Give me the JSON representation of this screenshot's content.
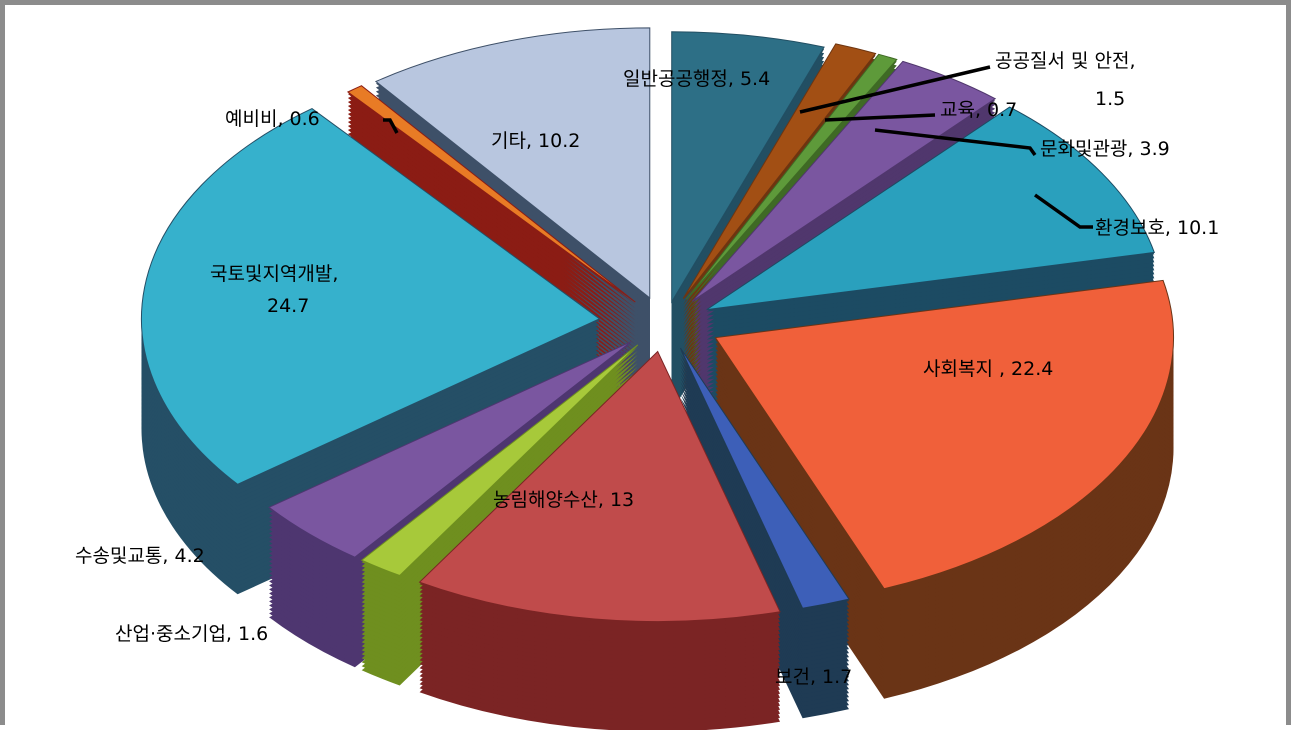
{
  "chart_data": {
    "type": "pie",
    "title": "",
    "categories": [
      "일반공공행정",
      "공공질서 및 안전",
      "교육",
      "문화및관광",
      "환경보호",
      "사회복지",
      "보건",
      "농림해양수산",
      "산업·중소기업",
      "수송및교통",
      "국토및지역개발",
      "예비비",
      "기타"
    ],
    "values": [
      5.4,
      1.5,
      0.7,
      3.9,
      10.1,
      22.4,
      1.7,
      13,
      1.6,
      4.2,
      24.7,
      0.6,
      10.2
    ],
    "colors": [
      "#2d6f86",
      "#a24f14",
      "#5e9a3a",
      "#7a56a0",
      "#2aa0bd",
      "#f0603a",
      "#3d5fb8",
      "#c04b4b",
      "#a7c93a",
      "#7a56a0",
      "#36b1cc",
      "#e87b25",
      "#b8c6df"
    ],
    "side_colors": [
      "#224f63",
      "#6e3510",
      "#3f6a25",
      "#50376d",
      "#1c4b63",
      "#6a3416",
      "#1f3b54",
      "#7b2424",
      "#6f8f1f",
      "#4e3670",
      "#254f66",
      "#8b1c14",
      "#3e5068"
    ],
    "labels": [
      {
        "line1": "일반공공행정, 5.4",
        "line2": ""
      },
      {
        "line1": "공공질서 및 안전,",
        "line2": "1.5"
      },
      {
        "line1": "교육, 0.7",
        "line2": ""
      },
      {
        "line1": "문화및관광, 3.9",
        "line2": ""
      },
      {
        "line1": "환경보호,  10.1",
        "line2": ""
      },
      {
        "line1": "사회복지 , 22.4",
        "line2": ""
      },
      {
        "line1": "보건, 1.7",
        "line2": ""
      },
      {
        "line1": "농림해양수산, 13",
        "line2": ""
      },
      {
        "line1": "산업·중소기업, 1.6",
        "line2": ""
      },
      {
        "line1": "수송및교통, 4.2",
        "line2": ""
      },
      {
        "line1": "국토및지역개발,",
        "line2": "24.7"
      },
      {
        "line1": "예비비, 0.6",
        "line2": ""
      },
      {
        "line1": "기타, 10.2",
        "line2": ""
      }
    ],
    "legend": "none",
    "style": "3d-exploded"
  }
}
